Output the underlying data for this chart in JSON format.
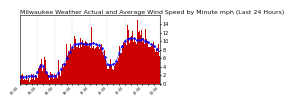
{
  "title": "Milwaukee Weather Actual and Average Wind Speed by Minute mph (Last 24 Hours)",
  "bg_color": "#ffffff",
  "bar_color": "#cc0000",
  "line_color": "#0000ff",
  "n_points": 1440,
  "seed": 42,
  "ylim": [
    0,
    16
  ],
  "yticks": [
    0,
    2,
    4,
    6,
    8,
    10,
    12,
    14
  ],
  "grid_color": "#aaaaaa",
  "title_fontsize": 4.5,
  "axis_fontsize": 3.5
}
